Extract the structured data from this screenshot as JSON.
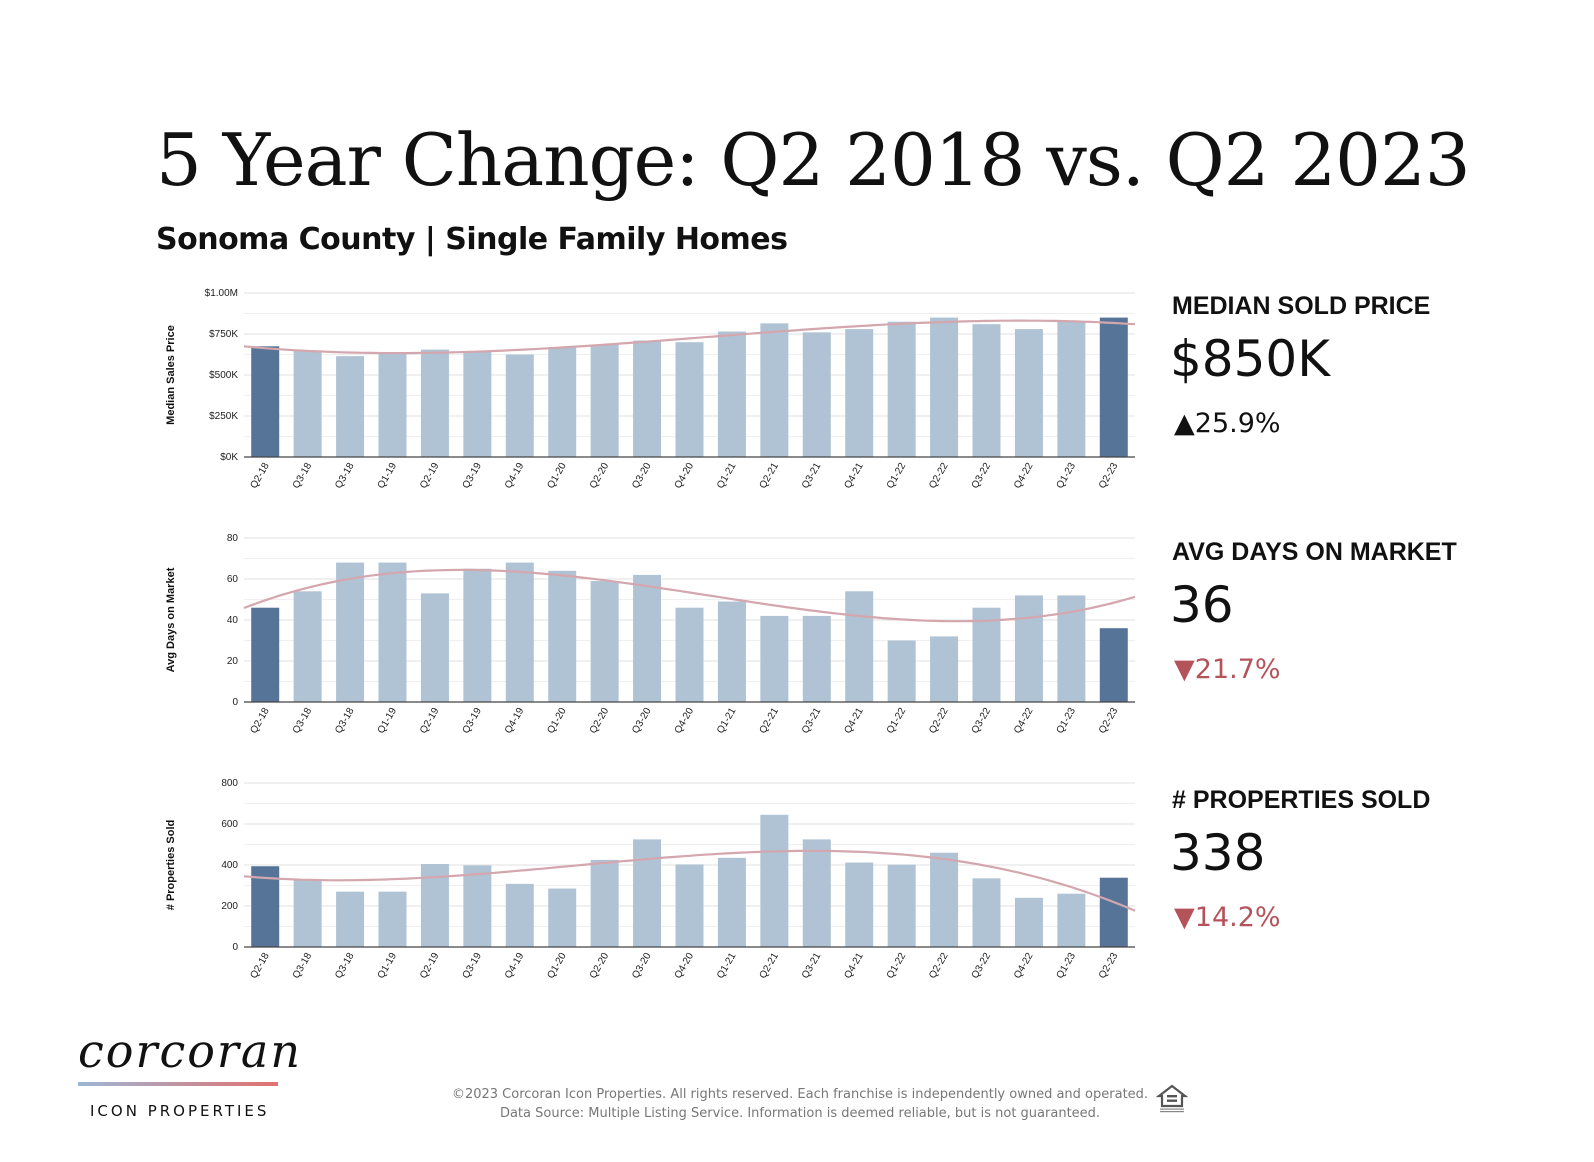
{
  "header": {
    "title": "5 Year Change: Q2 2018 vs. Q2 2023",
    "subtitle": "Sonoma County | Single Family Homes"
  },
  "colors": {
    "bar": "#b0c3d4",
    "bar_highlight": "#557498",
    "trend": "#d4a6ae",
    "down": "#b5535b",
    "up": "#111111"
  },
  "stats": [
    {
      "label": "MEDIAN SOLD PRICE",
      "value": "$850K",
      "change": "▲25.9%",
      "direction": "up"
    },
    {
      "label": "AVG DAYS ON MARKET",
      "value": "36",
      "change": "▼21.7%",
      "direction": "down"
    },
    {
      "label": "# PROPERTIES SOLD",
      "value": "338",
      "change": "▼14.2%",
      "direction": "down"
    }
  ],
  "chart_data": [
    {
      "type": "bar",
      "ylabel": "Median Sales Price",
      "categories": [
        "Q2-18",
        "Q3-18",
        "Q3-18",
        "Q1-19",
        "Q2-19",
        "Q3-19",
        "Q4-19",
        "Q1-20",
        "Q2-20",
        "Q3-20",
        "Q4-20",
        "Q1-21",
        "Q2-21",
        "Q3-21",
        "Q4-21",
        "Q1-22",
        "Q2-22",
        "Q3-22",
        "Q4-22",
        "Q1-23",
        "Q2-23"
      ],
      "values": [
        675000,
        650000,
        615000,
        630000,
        655000,
        645000,
        625000,
        670000,
        685000,
        710000,
        700000,
        765000,
        815000,
        760000,
        780000,
        825000,
        850000,
        810000,
        780000,
        825000,
        850000
      ],
      "highlight_indices": [
        0,
        20
      ],
      "ylim": [
        0,
        1000000
      ],
      "yticks": [
        0,
        250000,
        500000,
        750000,
        1000000
      ],
      "ytick_labels": [
        "$0K",
        "$250K",
        "$500K",
        "$750K",
        "$1.00M"
      ],
      "trendline": true
    },
    {
      "type": "bar",
      "ylabel": "Avg Days on Market",
      "categories": [
        "Q2-18",
        "Q3-18",
        "Q3-18",
        "Q1-19",
        "Q2-19",
        "Q3-19",
        "Q4-19",
        "Q1-20",
        "Q2-20",
        "Q3-20",
        "Q4-20",
        "Q1-21",
        "Q2-21",
        "Q3-21",
        "Q4-21",
        "Q1-22",
        "Q2-22",
        "Q3-22",
        "Q4-22",
        "Q1-23",
        "Q2-23"
      ],
      "values": [
        46,
        54,
        68,
        68,
        53,
        65,
        68,
        64,
        59,
        62,
        46,
        49,
        42,
        42,
        54,
        30,
        32,
        46,
        52,
        52,
        36
      ],
      "highlight_indices": [
        0,
        20
      ],
      "ylim": [
        0,
        80
      ],
      "yticks": [
        0,
        20,
        40,
        60,
        80
      ],
      "ytick_labels": [
        "0",
        "20",
        "40",
        "60",
        "80"
      ],
      "trendline": true
    },
    {
      "type": "bar",
      "ylabel": "# Properties Sold",
      "categories": [
        "Q2-18",
        "Q3-18",
        "Q3-18",
        "Q1-19",
        "Q2-19",
        "Q3-19",
        "Q4-19",
        "Q1-20",
        "Q2-20",
        "Q3-20",
        "Q4-20",
        "Q1-21",
        "Q2-21",
        "Q3-21",
        "Q4-21",
        "Q1-22",
        "Q2-22",
        "Q3-22",
        "Q4-22",
        "Q1-23",
        "Q2-23"
      ],
      "values": [
        394,
        325,
        270,
        270,
        405,
        398,
        308,
        285,
        425,
        525,
        403,
        435,
        645,
        525,
        412,
        402,
        460,
        335,
        240,
        260,
        338
      ],
      "highlight_indices": [
        0,
        20
      ],
      "ylim": [
        0,
        800
      ],
      "yticks": [
        0,
        200,
        400,
        600,
        800
      ],
      "ytick_labels": [
        "0",
        "200",
        "400",
        "600",
        "800"
      ],
      "trendline": true
    }
  ],
  "logo": {
    "wordmark": "corcoran",
    "subtitle": "ICON PROPERTIES"
  },
  "footer": {
    "line1": "©2023 Corcoran Icon Properties. All rights reserved. Each franchise is independently owned and operated.",
    "line2": "Data Source: Multiple Listing Service. Information is deemed reliable, but is not guaranteed."
  },
  "icons": {
    "equal_housing": "equal-housing-icon"
  }
}
